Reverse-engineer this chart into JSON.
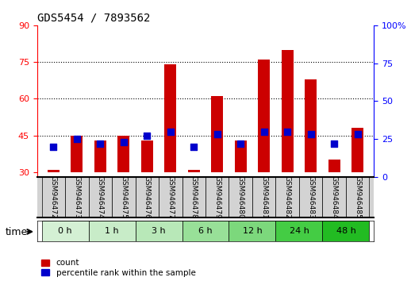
{
  "title": "GDS5454 / 7893562",
  "samples": [
    "GSM946472",
    "GSM946473",
    "GSM946474",
    "GSM946475",
    "GSM946476",
    "GSM946477",
    "GSM946478",
    "GSM946479",
    "GSM946480",
    "GSM946481",
    "GSM946482",
    "GSM946483",
    "GSM946484",
    "GSM946485"
  ],
  "count_values": [
    31,
    45,
    43,
    45,
    43,
    74,
    31,
    61,
    43,
    76,
    80,
    68,
    35,
    48
  ],
  "percentile_values": [
    20,
    25,
    22,
    23,
    27,
    30,
    20,
    28,
    22,
    30,
    30,
    28,
    22,
    28
  ],
  "count_base": 30,
  "time_groups": [
    {
      "label": "0 h",
      "start": 0,
      "end": 2,
      "color": "#d4f0d4"
    },
    {
      "label": "1 h",
      "start": 2,
      "end": 4,
      "color": "#c8ecc8"
    },
    {
      "label": "3 h",
      "start": 4,
      "end": 6,
      "color": "#b8e8b8"
    },
    {
      "label": "6 h",
      "start": 6,
      "end": 8,
      "color": "#98e098"
    },
    {
      "label": "12 h",
      "start": 8,
      "end": 10,
      "color": "#7cd87c"
    },
    {
      "label": "24 h",
      "start": 10,
      "end": 12,
      "color": "#44cc44"
    },
    {
      "label": "48 h",
      "start": 12,
      "end": 14,
      "color": "#22bb22"
    }
  ],
  "ylim_left": [
    28,
    90
  ],
  "ylim_right": [
    0,
    100
  ],
  "yticks_left": [
    30,
    45,
    60,
    75,
    90
  ],
  "yticks_right": [
    0,
    25,
    50,
    75,
    100
  ],
  "bar_color": "#cc0000",
  "dot_color": "#0000cc",
  "bg_color": "#ffffff",
  "sample_label_area_color": "#d3d3d3",
  "bar_width": 0.5,
  "dot_size": 28,
  "title_fontsize": 10,
  "tick_fontsize": 8,
  "label_fontsize": 7.5,
  "time_fontsize": 8
}
